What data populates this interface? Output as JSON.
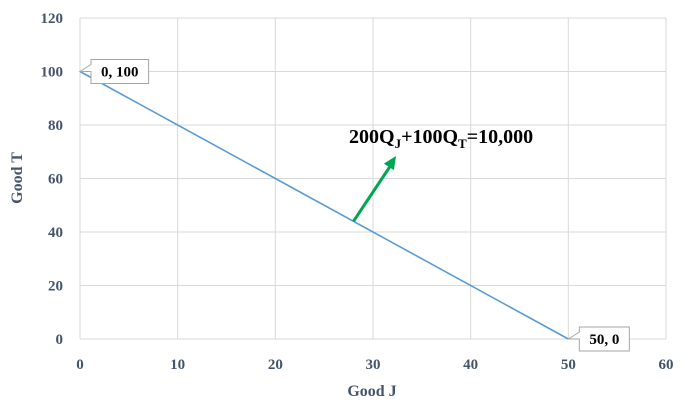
{
  "chart_data": {
    "type": "line",
    "title": "",
    "xlabel": "Good J",
    "ylabel": "Good T",
    "xlim": [
      0,
      60
    ],
    "ylim": [
      0,
      120
    ],
    "x_ticks": [
      "0",
      "10",
      "20",
      "30",
      "40",
      "50",
      "60"
    ],
    "y_ticks": [
      "0",
      "20",
      "40",
      "60",
      "80",
      "100",
      "120"
    ],
    "grid": true,
    "legend": "none",
    "series": [
      {
        "x": [
          0,
          50
        ],
        "y": [
          100,
          0
        ]
      }
    ],
    "annotations": [
      {
        "text": "0, 100",
        "x": 0,
        "y": 100
      },
      {
        "text": "50, 0",
        "x": 50,
        "y": 0
      }
    ],
    "equation": {
      "parts": [
        "200Q",
        "J",
        "+100Q",
        "T",
        "=10,000"
      ],
      "arrow_from": [
        28,
        44
      ],
      "arrow_color": "#00a651"
    },
    "colors": {
      "line": "#5b9bd5",
      "grid": "#d9d9d9",
      "axis_text": "#44546a",
      "arrow": "#00a651"
    }
  }
}
